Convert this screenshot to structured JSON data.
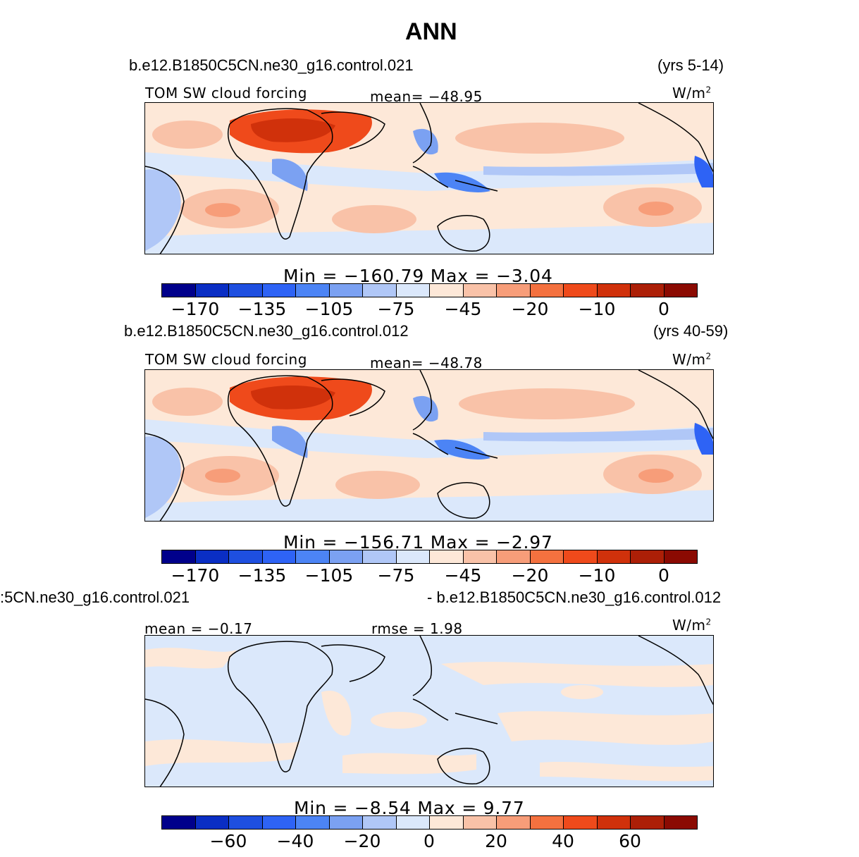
{
  "title": "ANN",
  "units": "W/m",
  "units_sup": "2",
  "palette": [
    "#00008b",
    "#0a2ec4",
    "#1e4fe0",
    "#2e63f5",
    "#4c84f5",
    "#7ba1f2",
    "#b0c7f7",
    "#dbe8fb",
    "#fde8d8",
    "#f9c2a8",
    "#f79d79",
    "#f4713f",
    "#ef4a1b",
    "#d0310b",
    "#ac1f07",
    "#8b0a02"
  ],
  "panels": [
    {
      "case_name": "b.e12.B1850C5CN.ne30_g16.control.021",
      "years": "(yrs 5-14)",
      "variable": "TOM SW cloud forcing",
      "stat": "mean=  −48.95",
      "minmax": "Min  =  −160.79  Max  =    −3.04",
      "ticks": [
        "−170",
        "−135",
        "−105",
        "−75",
        "−45",
        "−20",
        "−10",
        "0"
      ]
    },
    {
      "case_name": "b.e12.B1850C5CN.ne30_g16.control.012",
      "years": "(yrs 40-59)",
      "variable": "TOM SW cloud forcing",
      "stat": "mean=  −48.78",
      "minmax": "Min  =  −156.71  Max  =    −2.97",
      "ticks": [
        "−170",
        "−135",
        "−105",
        "−75",
        "−45",
        "−20",
        "−10",
        "0"
      ]
    },
    {
      "left_label": ":5CN.ne30_g16.control.021",
      "right_label": "- b.e12.B1850C5CN.ne30_g16.control.012",
      "mean": "mean  =   −0.17",
      "rmse": "rmse  =     1.98",
      "minmax": "Min  =    −8.54  Max  =      9.77",
      "ticks": [
        "−60",
        "−40",
        "−20",
        "0",
        "20",
        "40",
        "60"
      ]
    }
  ]
}
